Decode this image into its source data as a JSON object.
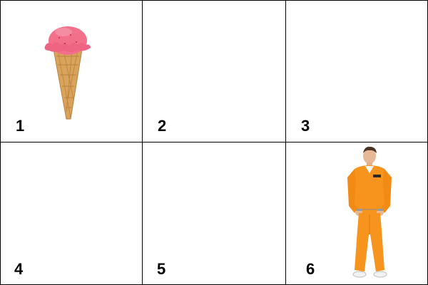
{
  "grid": {
    "cells": [
      {
        "number": "1",
        "content": "ice-cream-cone"
      },
      {
        "number": "2",
        "content": "empty"
      },
      {
        "number": "3",
        "content": "empty"
      },
      {
        "number": "4",
        "content": "empty"
      },
      {
        "number": "5",
        "content": "empty"
      },
      {
        "number": "6",
        "content": "man-in-orange-prison-jumpsuit"
      }
    ]
  },
  "colors": {
    "border": "#000000",
    "scoop": "#f2708a",
    "cone": "#d9a35c",
    "jumpsuit": "#f7941d"
  }
}
